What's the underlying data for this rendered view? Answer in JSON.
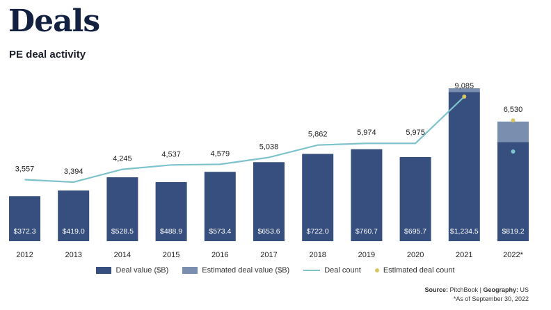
{
  "page": {
    "title": "Deals",
    "subtitle": "PE deal activity"
  },
  "chart_data": {
    "type": "bar",
    "categories": [
      "2012",
      "2013",
      "2014",
      "2015",
      "2016",
      "2017",
      "2018",
      "2019",
      "2020",
      "2021",
      "2022*"
    ],
    "series": [
      {
        "name": "Deal value ($B)",
        "type": "bar",
        "values": [
          372.3,
          419.0,
          528.5,
          488.9,
          573.4,
          653.6,
          722.0,
          760.7,
          695.7,
          1234.5,
          819.2
        ],
        "labels": [
          "$372.3",
          "$419.0",
          "$528.5",
          "$488.9",
          "$573.4",
          "$653.6",
          "$722.0",
          "$760.7",
          "$695.7",
          "$1,234.5",
          "$819.2"
        ]
      },
      {
        "name": "Estimated deal value ($B)",
        "type": "bar-stacked",
        "values": [
          0,
          0,
          0,
          0,
          0,
          0,
          0,
          0,
          0,
          30,
          170
        ]
      },
      {
        "name": "Deal count",
        "type": "line",
        "values": [
          3557,
          3394,
          4245,
          4537,
          4579,
          5038,
          5862,
          5974,
          5975,
          9085,
          null
        ],
        "labels": [
          "3,557",
          "3,394",
          "4,245",
          "4,537",
          "4,579",
          "5,038",
          "5,862",
          "5,974",
          "5,975",
          "9,085",
          ""
        ]
      },
      {
        "name": "Estimated deal count",
        "type": "point",
        "values": [
          null,
          null,
          null,
          null,
          null,
          null,
          null,
          null,
          null,
          9085,
          6530
        ],
        "labels": [
          "",
          "",
          "",
          "",
          "",
          "",
          "",
          "",
          "",
          "",
          "6,530"
        ]
      }
    ],
    "legend": "bottom",
    "grid": false,
    "colors": {
      "deal_value": "#364f7e",
      "estimated_value": "#7a8eb0",
      "deal_count": "#7ec3cc",
      "estimated_count": "#d8c661"
    },
    "extra_marker": {
      "category": "2022*",
      "series": "Deal count",
      "color": "#7ec3cc"
    }
  },
  "legend": {
    "deal_value": "Deal value ($B)",
    "estimated_value": "Estimated deal value ($B)",
    "deal_count": "Deal count",
    "estimated_count": "Estimated deal count"
  },
  "footer": {
    "source_label": "Source:",
    "source_value": "PitchBook",
    "separator": "|",
    "geography_label": "Geography:",
    "geography_value": "US",
    "note": "*As of September 30, 2022"
  }
}
